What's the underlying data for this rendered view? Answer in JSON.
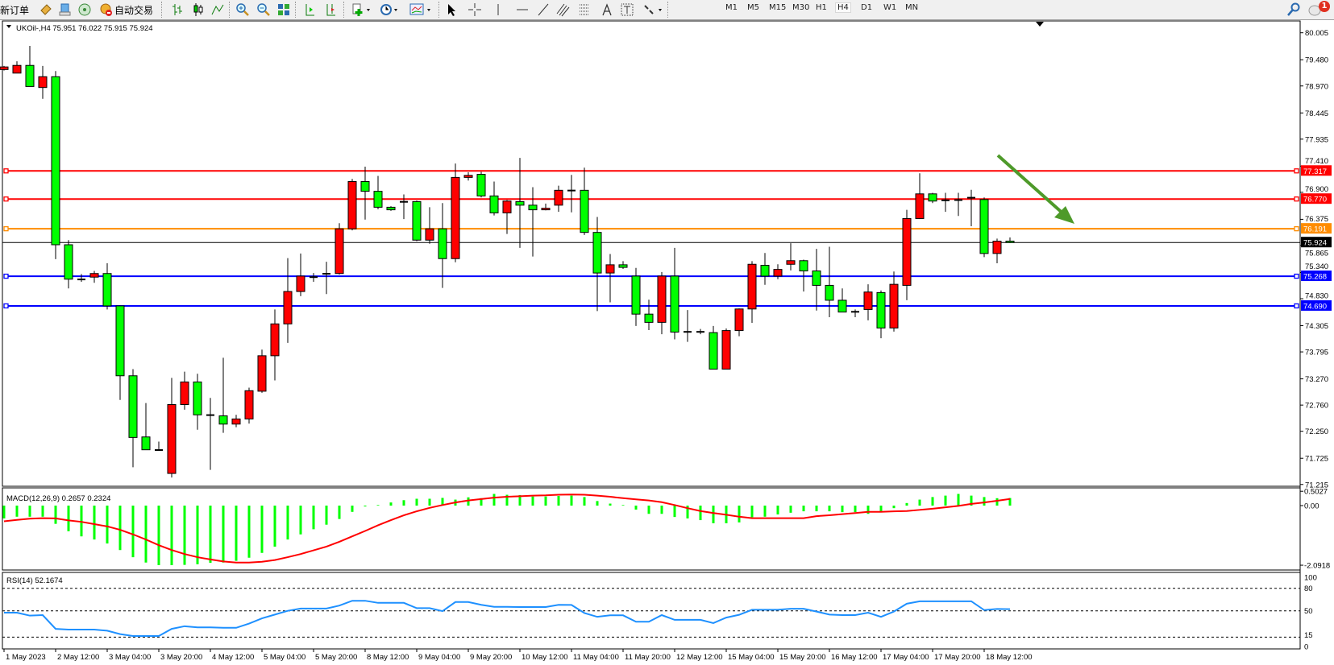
{
  "toolbar": {
    "new_order": "新订单",
    "auto_trading": "自动交易",
    "timeframes": [
      "M1",
      "M5",
      "M15",
      "M30",
      "H1",
      "H4",
      "D1",
      "W1",
      "MN"
    ],
    "active_timeframe": "H4",
    "notification_count": "1"
  },
  "chart": {
    "symbol_header": "UKOil-,H4  75.951 76.022 75.915 75.924",
    "symbol": "UKOil-",
    "timeframe": "H4",
    "ohlc": {
      "open": 75.951,
      "high": 76.022,
      "low": 75.915,
      "close": 75.924
    },
    "colors": {
      "bull": "#ff0000",
      "bear": "#00ff00",
      "outline": "#000000",
      "arrow": "#4e9a2a"
    },
    "price_axis_labels": [
      "80.005",
      "79.480",
      "78.970",
      "78.445",
      "77.935",
      "77.410",
      "76.900",
      "76.375",
      "75.865",
      "75.340",
      "74.830",
      "74.305",
      "73.795",
      "73.270",
      "72.760",
      "72.250",
      "71.725",
      "71.215"
    ],
    "price_range": [
      71.215,
      80.005
    ],
    "time_labels": [
      "1 May 2023",
      "2 May 12:00",
      "3 May 04:00",
      "3 May 20:00",
      "4 May 12:00",
      "5 May 04:00",
      "5 May 20:00",
      "8 May 12:00",
      "9 May 04:00",
      "9 May 20:00",
      "10 May 12:00",
      "11 May 04:00",
      "11 May 20:00",
      "12 May 12:00",
      "15 May 04:00",
      "15 May 20:00",
      "16 May 12:00",
      "17 May 04:00",
      "17 May 20:00",
      "18 May 12:00"
    ],
    "hlines": [
      {
        "price": 77.317,
        "label": "77.317",
        "color": "#ff0000"
      },
      {
        "price": 76.77,
        "label": "76.770",
        "color": "#ff0000"
      },
      {
        "price": 76.191,
        "label": "76.191",
        "color": "#ff8c00"
      },
      {
        "price": 75.268,
        "label": "75.268",
        "color": "#0000ff"
      },
      {
        "price": 74.69,
        "label": "74.690",
        "color": "#0000ff"
      }
    ],
    "current_price": {
      "price": 75.924,
      "label": "75.924",
      "color": "#000000"
    },
    "arrow": {
      "direction": "down-right"
    }
  },
  "chart_data": {
    "type": "candlestick",
    "candles_ohlc": [
      [
        79.29,
        79.36,
        79.27,
        79.34
      ],
      [
        79.22,
        79.45,
        79.22,
        79.37
      ],
      [
        79.37,
        79.75,
        78.96,
        78.96
      ],
      [
        78.94,
        79.36,
        78.72,
        79.15
      ],
      [
        79.15,
        79.26,
        75.6,
        75.88
      ],
      [
        75.88,
        75.97,
        75.03,
        75.21
      ],
      [
        75.21,
        75.31,
        75.16,
        75.2
      ],
      [
        75.25,
        75.37,
        75.14,
        75.32
      ],
      [
        75.32,
        75.52,
        74.62,
        74.69
      ],
      [
        74.69,
        74.7,
        72.86,
        73.33
      ],
      [
        73.33,
        73.46,
        71.55,
        72.13
      ],
      [
        72.14,
        72.8,
        71.89,
        71.89
      ],
      [
        71.89,
        72.05,
        71.87,
        71.88
      ],
      [
        71.43,
        73.29,
        71.35,
        72.77
      ],
      [
        72.77,
        73.41,
        72.67,
        73.21
      ],
      [
        73.21,
        73.37,
        72.28,
        72.57
      ],
      [
        72.57,
        72.9,
        71.5,
        72.56
      ],
      [
        72.55,
        73.68,
        72.22,
        72.39
      ],
      [
        72.39,
        72.57,
        72.33,
        72.49
      ],
      [
        72.49,
        73.1,
        72.4,
        73.04
      ],
      [
        73.03,
        73.84,
        73.0,
        73.72
      ],
      [
        73.72,
        74.62,
        73.24,
        74.34
      ],
      [
        74.34,
        75.62,
        73.97,
        74.97
      ],
      [
        74.97,
        75.71,
        74.88,
        75.27
      ],
      [
        75.26,
        75.33,
        75.16,
        75.24
      ],
      [
        75.31,
        75.55,
        74.92,
        75.32
      ],
      [
        75.32,
        76.3,
        75.3,
        76.19
      ],
      [
        76.19,
        77.16,
        76.16,
        77.11
      ],
      [
        77.11,
        77.4,
        76.37,
        76.92
      ],
      [
        76.92,
        77.22,
        76.57,
        76.61
      ],
      [
        76.61,
        76.63,
        76.54,
        76.56
      ],
      [
        76.71,
        76.86,
        76.38,
        76.72
      ],
      [
        76.72,
        76.74,
        75.95,
        75.97
      ],
      [
        75.97,
        76.61,
        75.9,
        76.19
      ],
      [
        76.19,
        76.69,
        75.04,
        75.61
      ],
      [
        75.61,
        77.46,
        75.54,
        77.19
      ],
      [
        77.19,
        77.29,
        77.13,
        77.23
      ],
      [
        77.25,
        77.3,
        76.8,
        76.83
      ],
      [
        76.83,
        77.11,
        76.45,
        76.5
      ],
      [
        76.5,
        76.75,
        76.09,
        76.73
      ],
      [
        76.72,
        77.57,
        75.82,
        76.65
      ],
      [
        76.65,
        77.0,
        75.65,
        76.56
      ],
      [
        76.56,
        76.68,
        76.55,
        76.59
      ],
      [
        76.65,
        77.03,
        76.52,
        76.94
      ],
      [
        76.93,
        77.24,
        76.51,
        76.94
      ],
      [
        76.94,
        77.38,
        76.07,
        76.12
      ],
      [
        76.12,
        76.42,
        74.59,
        75.33
      ],
      [
        75.33,
        75.7,
        74.76,
        75.49
      ],
      [
        75.49,
        75.56,
        75.41,
        75.44
      ],
      [
        75.27,
        75.43,
        74.3,
        74.53
      ],
      [
        74.53,
        74.81,
        74.22,
        74.37
      ],
      [
        74.37,
        75.35,
        74.14,
        75.27
      ],
      [
        75.27,
        75.82,
        74.04,
        74.18
      ],
      [
        74.19,
        74.61,
        73.99,
        74.18
      ],
      [
        74.18,
        74.24,
        74.14,
        74.19
      ],
      [
        74.17,
        74.3,
        73.46,
        73.46
      ],
      [
        73.46,
        74.25,
        73.46,
        74.21
      ],
      [
        74.21,
        74.64,
        74.1,
        74.63
      ],
      [
        74.63,
        75.56,
        74.36,
        75.5
      ],
      [
        75.48,
        75.72,
        75.1,
        75.27
      ],
      [
        75.27,
        75.5,
        75.21,
        75.4
      ],
      [
        75.5,
        75.91,
        75.38,
        75.57
      ],
      [
        75.57,
        75.59,
        74.97,
        75.37
      ],
      [
        75.37,
        75.8,
        74.6,
        75.09
      ],
      [
        75.09,
        75.84,
        74.47,
        74.8
      ],
      [
        74.8,
        75.03,
        74.57,
        74.57
      ],
      [
        74.57,
        74.62,
        74.47,
        74.58
      ],
      [
        74.62,
        75.11,
        74.41,
        74.96
      ],
      [
        74.95,
        74.99,
        74.06,
        74.26
      ],
      [
        74.26,
        75.36,
        74.19,
        75.11
      ],
      [
        75.09,
        76.56,
        74.8,
        76.39
      ],
      [
        76.39,
        77.27,
        76.38,
        76.87
      ],
      [
        76.87,
        76.89,
        76.69,
        76.73
      ],
      [
        76.74,
        76.89,
        76.52,
        76.75
      ],
      [
        76.75,
        76.89,
        76.44,
        76.75
      ],
      [
        76.79,
        76.95,
        76.24,
        76.8
      ],
      [
        76.76,
        76.8,
        75.64,
        75.71
      ],
      [
        75.71,
        76.0,
        75.52,
        75.95
      ],
      [
        75.951,
        76.022,
        75.915,
        75.924
      ]
    ],
    "macd": {
      "label": "MACD(12,26,9) 0.2657 0.2324",
      "axis_labels": [
        "0.5027",
        "0.00",
        "-2.0918"
      ],
      "range": [
        -2.0918,
        0.5027
      ],
      "histogram_color": "#00ff00",
      "signal_color": "#ff0000",
      "histogram": [
        -0.45,
        -0.39,
        -0.39,
        -0.39,
        -0.64,
        -0.9,
        -1.08,
        -1.19,
        -1.33,
        -1.56,
        -1.81,
        -2.0,
        -2.09,
        -2.09,
        -2.08,
        -2.06,
        -2.01,
        -2.0,
        -1.94,
        -1.83,
        -1.66,
        -1.44,
        -1.19,
        -1.01,
        -0.83,
        -0.67,
        -0.47,
        -0.22,
        -0.03,
        0.02,
        0.11,
        0.19,
        0.24,
        0.24,
        0.27,
        0.21,
        0.29,
        0.26,
        0.41,
        0.38,
        0.37,
        0.32,
        0.32,
        0.34,
        0.35,
        0.3,
        0.16,
        0.07,
        0.02,
        -0.14,
        -0.29,
        -0.29,
        -0.4,
        -0.45,
        -0.51,
        -0.62,
        -0.62,
        -0.59,
        -0.41,
        -0.39,
        -0.31,
        -0.25,
        -0.2,
        -0.2,
        -0.2,
        -0.23,
        -0.23,
        -0.29,
        -0.2,
        -0.09,
        0.09,
        0.21,
        0.3,
        0.35,
        0.41,
        0.35,
        0.3,
        0.26,
        0.2657
      ],
      "signal": [
        -0.55,
        -0.5,
        -0.46,
        -0.44,
        -0.45,
        -0.52,
        -0.57,
        -0.65,
        -0.73,
        -0.85,
        -1.01,
        -1.19,
        -1.39,
        -1.56,
        -1.7,
        -1.81,
        -1.89,
        -1.96,
        -2.0,
        -2.0,
        -1.97,
        -1.91,
        -1.81,
        -1.7,
        -1.57,
        -1.44,
        -1.27,
        -1.08,
        -0.89,
        -0.69,
        -0.51,
        -0.34,
        -0.2,
        -0.08,
        0.02,
        0.11,
        0.18,
        0.23,
        0.28,
        0.31,
        0.33,
        0.35,
        0.36,
        0.38,
        0.39,
        0.38,
        0.35,
        0.31,
        0.26,
        0.22,
        0.18,
        0.12,
        0.02,
        -0.09,
        -0.19,
        -0.26,
        -0.32,
        -0.39,
        -0.44,
        -0.44,
        -0.44,
        -0.44,
        -0.44,
        -0.37,
        -0.34,
        -0.3,
        -0.26,
        -0.22,
        -0.22,
        -0.2,
        -0.19,
        -0.15,
        -0.11,
        -0.06,
        -0.01,
        0.06,
        0.11,
        0.17,
        0.2324
      ]
    },
    "rsi": {
      "label": "RSI(14) 52.1674",
      "axis_labels": [
        "100",
        "80",
        "50",
        "15",
        "0"
      ],
      "levels": [
        80,
        50,
        15
      ],
      "range": [
        0,
        100
      ],
      "color": "#1e90ff",
      "values": [
        47.5,
        47.5,
        43.6,
        44.3,
        26,
        25,
        25,
        25,
        23.5,
        19,
        16.5,
        16.4,
        16.4,
        26,
        29.5,
        28,
        28,
        27.4,
        27.4,
        33,
        40,
        45,
        50,
        53,
        53,
        53,
        57,
        63.4,
        63.4,
        60.6,
        60.6,
        60.6,
        53.5,
        53.5,
        49.6,
        61.7,
        61.7,
        58,
        55.3,
        55.3,
        55,
        55,
        55,
        58,
        57.8,
        47,
        42,
        44,
        44,
        35.5,
        35.5,
        44.3,
        38,
        38,
        38,
        33.7,
        41,
        44.7,
        51.4,
        51.4,
        51.4,
        52.8,
        52.8,
        49,
        45,
        44.3,
        44.3,
        47.5,
        42,
        49,
        59.5,
        62.7,
        62.7,
        62.7,
        62.7,
        62.7,
        51,
        52.5,
        52.17
      ]
    }
  }
}
